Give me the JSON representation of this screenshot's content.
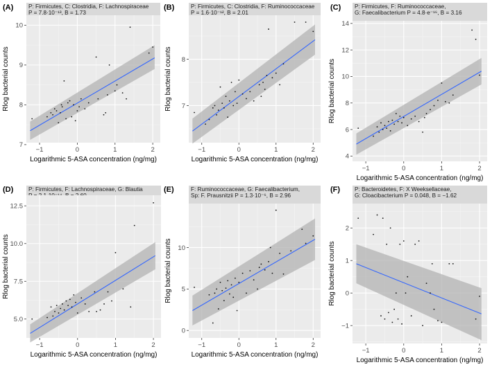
{
  "chart_data": [
    {
      "type": "scatter",
      "panel_label": "(A)",
      "strip": [
        "P: Firmicutes, C: Clostridia, F: Lachnospiraceae",
        "P = 7.8·10⁻¹³, B = 1.73"
      ],
      "xlabel": "Logarithmic 5-ASA concentration (ng/mg)",
      "ylabel": "Rlog bacterial counts",
      "xlim": [
        -1.35,
        2.2
      ],
      "ylim": [
        7.05,
        10.25
      ],
      "xticks": [
        -1,
        0,
        1,
        2
      ],
      "xtick_labels": [
        "−1",
        "0",
        "1",
        "2"
      ],
      "yticks": [
        7,
        8,
        9,
        10
      ],
      "ytick_labels": [
        "7",
        "8",
        "9",
        "10"
      ],
      "fit": {
        "x": [
          -1.25,
          2.05
        ],
        "y": [
          7.35,
          9.18
        ],
        "band_start": [
          7.12,
          7.58
        ],
        "band_end": [
          8.9,
          9.5
        ]
      },
      "points": {
        "x": [
          -1.2,
          -0.8,
          -0.7,
          -0.65,
          -0.6,
          -0.55,
          -0.5,
          -0.45,
          -0.42,
          -0.4,
          -0.35,
          -0.3,
          -0.25,
          -0.2,
          -0.15,
          -0.1,
          -0.05,
          0.0,
          0.05,
          0.1,
          0.2,
          0.3,
          0.5,
          0.55,
          0.7,
          0.75,
          0.8,
          0.85,
          1.0,
          1.05,
          1.2,
          1.3,
          1.4,
          1.9,
          2.0
        ],
        "y": [
          7.65,
          7.7,
          7.8,
          7.75,
          7.9,
          7.85,
          7.55,
          7.8,
          8.0,
          7.95,
          8.6,
          7.65,
          8.05,
          8.1,
          7.7,
          8.0,
          7.6,
          7.85,
          7.95,
          8.15,
          7.9,
          8.05,
          9.2,
          8.15,
          7.75,
          7.8,
          8.25,
          9.0,
          8.35,
          8.5,
          8.3,
          8.15,
          9.95,
          9.3,
          9.45
        ]
      }
    },
    {
      "type": "scatter",
      "panel_label": "(B)",
      "strip": [
        "P: Firmicutes, C: Clostridia, F: Ruminococcaceae",
        "P = 1.6·10⁻¹², B = 2.01"
      ],
      "xlabel": "Logarithmic 5-ASA concentration (ng/mg)",
      "ylabel": "Rlog bacterial counts",
      "xlim": [
        -1.35,
        2.2
      ],
      "ylim": [
        6.2,
        8.95
      ],
      "xticks": [
        -1,
        0,
        1,
        2
      ],
      "xtick_labels": [
        "−1",
        "0",
        "1",
        "2"
      ],
      "yticks": [
        7,
        8
      ],
      "ytick_labels": [
        "7",
        "8"
      ],
      "fit": {
        "x": [
          -1.25,
          2.05
        ],
        "y": [
          6.45,
          8.42
        ],
        "band_start": [
          6.18,
          6.72
        ],
        "band_end": [
          8.1,
          8.75
        ]
      },
      "points": {
        "x": [
          -1.2,
          -0.9,
          -0.8,
          -0.7,
          -0.65,
          -0.6,
          -0.55,
          -0.5,
          -0.45,
          -0.4,
          -0.35,
          -0.3,
          -0.25,
          -0.2,
          -0.15,
          -0.1,
          -0.05,
          0.0,
          0.1,
          0.2,
          0.3,
          0.4,
          0.55,
          0.6,
          0.65,
          0.7,
          0.75,
          0.8,
          0.9,
          1.0,
          1.1,
          1.2,
          1.5,
          1.8,
          2.0
        ],
        "y": [
          6.85,
          6.6,
          6.7,
          6.95,
          7.0,
          6.8,
          6.9,
          7.4,
          7.05,
          6.95,
          7.2,
          6.75,
          7.1,
          7.5,
          7.0,
          7.3,
          7.05,
          7.55,
          7.25,
          7.15,
          7.3,
          7.1,
          7.45,
          7.2,
          7.5,
          7.35,
          7.65,
          8.65,
          7.6,
          7.7,
          7.45,
          7.9,
          8.8,
          8.8,
          8.6
        ]
      }
    },
    {
      "type": "scatter",
      "panel_label": "(C)",
      "strip": [
        "P: Firmicutes, F: Ruminococcaceae,",
        "G: Faecalibacterium P = 4.8·e⁻¹⁶, B = 3.16"
      ],
      "xlabel": "Logarithmic 5-ASA concentration (ng/mg)",
      "ylabel": "Rlog bacterial counts",
      "xlim": [
        -1.35,
        2.2
      ],
      "ylim": [
        3.6,
        14.2
      ],
      "xticks": [
        -1,
        0,
        1,
        2
      ],
      "xtick_labels": [
        "−1",
        "0",
        "1",
        "2"
      ],
      "yticks": [
        4,
        6,
        8,
        10,
        12,
        14
      ],
      "ytick_labels": [
        "4",
        "6",
        "8",
        "10",
        "12",
        "14"
      ],
      "fit": {
        "x": [
          -1.25,
          2.05
        ],
        "y": [
          4.9,
          10.4
        ],
        "band_start": [
          4.1,
          5.7
        ],
        "band_end": [
          9.4,
          11.4
        ]
      },
      "points": {
        "x": [
          -1.2,
          -0.8,
          -0.7,
          -0.65,
          -0.6,
          -0.55,
          -0.5,
          -0.45,
          -0.4,
          -0.35,
          -0.3,
          -0.25,
          -0.2,
          -0.15,
          -0.1,
          -0.05,
          0.0,
          0.1,
          0.2,
          0.3,
          0.4,
          0.5,
          0.55,
          0.6,
          0.7,
          0.8,
          0.9,
          1.0,
          1.1,
          1.2,
          1.3,
          1.8,
          1.9,
          2.0
        ],
        "y": [
          6.1,
          5.5,
          6.2,
          5.8,
          6.5,
          6.0,
          6.3,
          6.1,
          6.6,
          5.9,
          6.7,
          6.4,
          7.2,
          6.6,
          7.0,
          6.5,
          6.9,
          6.3,
          6.8,
          7.0,
          6.6,
          5.8,
          6.9,
          7.2,
          7.5,
          7.8,
          8.2,
          9.5,
          8.1,
          8.0,
          8.6,
          13.5,
          12.8,
          10.1
        ]
      }
    },
    {
      "type": "scatter",
      "panel_label": "(D)",
      "strip": [
        "P: Firmicutes, F: Lachnospiraceae, G: Blautia",
        "P = 2.1·10⁻¹⁴, B = 2.60"
      ],
      "xlabel": "Logarithmic 5-ASA concentration (ng/mg)",
      "ylabel": "Rlog bacterial counts",
      "xlim": [
        -1.35,
        2.2
      ],
      "ylim": [
        3.75,
        13.2
      ],
      "xticks": [
        -1,
        0,
        1,
        2
      ],
      "xtick_labels": [
        "−1",
        "0",
        "1",
        "2"
      ],
      "yticks": [
        5,
        7.5,
        10,
        12.5
      ],
      "ytick_labels": [
        "5.0",
        "7.5",
        "10.0",
        "12.5"
      ],
      "fit": {
        "x": [
          -1.25,
          2.05
        ],
        "y": [
          4.05,
          9.2
        ],
        "band_start": [
          3.45,
          4.65
        ],
        "band_end": [
          8.3,
          10.1
        ]
      },
      "points": {
        "x": [
          -1.2,
          -0.8,
          -0.7,
          -0.65,
          -0.6,
          -0.55,
          -0.5,
          -0.45,
          -0.4,
          -0.35,
          -0.3,
          -0.25,
          -0.2,
          -0.15,
          -0.1,
          -0.05,
          0.0,
          0.1,
          0.2,
          0.3,
          0.45,
          0.5,
          0.6,
          0.7,
          0.8,
          0.9,
          1.0,
          1.2,
          1.4,
          1.5,
          2.0
        ],
        "y": [
          5.0,
          5.1,
          5.8,
          5.2,
          5.5,
          5.9,
          5.4,
          5.7,
          6.0,
          5.6,
          6.2,
          5.9,
          6.3,
          5.8,
          6.6,
          6.1,
          5.4,
          6.4,
          6.0,
          5.5,
          6.8,
          5.5,
          5.6,
          6.0,
          6.8,
          6.2,
          9.4,
          7.0,
          5.8,
          11.2,
          12.7
        ]
      }
    },
    {
      "type": "scatter",
      "panel_label": "(E)",
      "strip": [
        "F: Ruminococcaceae, G: Faecalibacterium,",
        "Sp: F. Prausnitzii P = 1.3·10⁻⁶, B = 2.96"
      ],
      "xlabel": "Logarithmic 5-ASA concentration (ng/mg)",
      "ylabel": "Rlog bacterial counts",
      "xlim": [
        -1.35,
        2.2
      ],
      "ylim": [
        -0.9,
        15.3
      ],
      "xticks": [
        -1,
        0,
        1,
        2
      ],
      "xtick_labels": [
        "−1",
        "0",
        "1",
        "2"
      ],
      "yticks": [
        0,
        5,
        10
      ],
      "ytick_labels": [
        "0",
        "5",
        "10"
      ],
      "fit": {
        "x": [
          -1.25,
          2.05
        ],
        "y": [
          2.4,
          11.0
        ],
        "band_start": [
          0.6,
          4.2
        ],
        "band_end": [
          8.5,
          13.5
        ]
      },
      "points": {
        "x": [
          -1.2,
          -0.8,
          -0.7,
          -0.65,
          -0.6,
          -0.55,
          -0.5,
          -0.45,
          -0.4,
          -0.35,
          -0.3,
          -0.25,
          -0.2,
          -0.15,
          -0.1,
          -0.05,
          0.0,
          0.1,
          0.2,
          0.3,
          0.4,
          0.5,
          0.55,
          0.6,
          0.7,
          0.8,
          0.85,
          0.9,
          1.0,
          1.1,
          1.2,
          1.4,
          1.7,
          1.8,
          2.0
        ],
        "y": [
          5.2,
          4.3,
          0.9,
          4.5,
          5.0,
          2.6,
          5.8,
          4.8,
          3.6,
          5.1,
          6.0,
          4.4,
          5.5,
          4.0,
          6.3,
          2.4,
          5.8,
          6.9,
          4.5,
          7.2,
          6.1,
          5.0,
          7.6,
          8.0,
          7.3,
          8.3,
          10.0,
          6.9,
          14.5,
          9.3,
          6.8,
          9.6,
          12.2,
          10.5,
          11.4
        ]
      }
    },
    {
      "type": "scatter",
      "panel_label": "(F)",
      "strip": [
        "P: Bacteroidetes,  F: X Weeksellaceae,",
        "G: Cloacibacterium P = 0.048, B = −1.62"
      ],
      "xlabel": "Logarithmic 5-ASA concentration (ng/mg)",
      "ylabel": "Rlog bacterial counts",
      "xlim": [
        -1.35,
        2.2
      ],
      "ylim": [
        -1.55,
        2.75
      ],
      "xticks": [
        -1,
        0,
        1,
        2
      ],
      "xtick_labels": [
        "−1",
        "0",
        "1",
        "2"
      ],
      "yticks": [
        -1,
        0,
        1,
        2
      ],
      "ytick_labels": [
        "−1",
        "0",
        "1",
        "2"
      ],
      "fit": {
        "x": [
          -1.25,
          2.05
        ],
        "y": [
          0.9,
          -0.64
        ],
        "band_start": [
          0.3,
          1.5
        ],
        "band_end": [
          -1.45,
          0.15
        ]
      },
      "points": {
        "x": [
          -1.2,
          -0.8,
          -0.7,
          -0.6,
          -0.55,
          -0.5,
          -0.45,
          -0.4,
          -0.35,
          -0.3,
          -0.25,
          -0.2,
          -0.15,
          -0.1,
          -0.05,
          0.0,
          0.05,
          0.1,
          0.2,
          0.3,
          0.4,
          0.5,
          0.6,
          0.7,
          0.75,
          0.8,
          0.9,
          1.0,
          1.2,
          1.3,
          1.9,
          2.0
        ],
        "y": [
          2.3,
          1.8,
          2.4,
          -0.7,
          2.3,
          -0.8,
          1.5,
          -0.6,
          2.0,
          -0.9,
          -0.5,
          0.0,
          -0.8,
          1.5,
          -0.95,
          1.6,
          0.0,
          0.5,
          -0.7,
          1.5,
          1.6,
          -1.0,
          0.3,
          0.0,
          0.9,
          -0.5,
          -0.85,
          -0.9,
          0.9,
          0.9,
          -0.8,
          -0.1
        ]
      }
    }
  ]
}
